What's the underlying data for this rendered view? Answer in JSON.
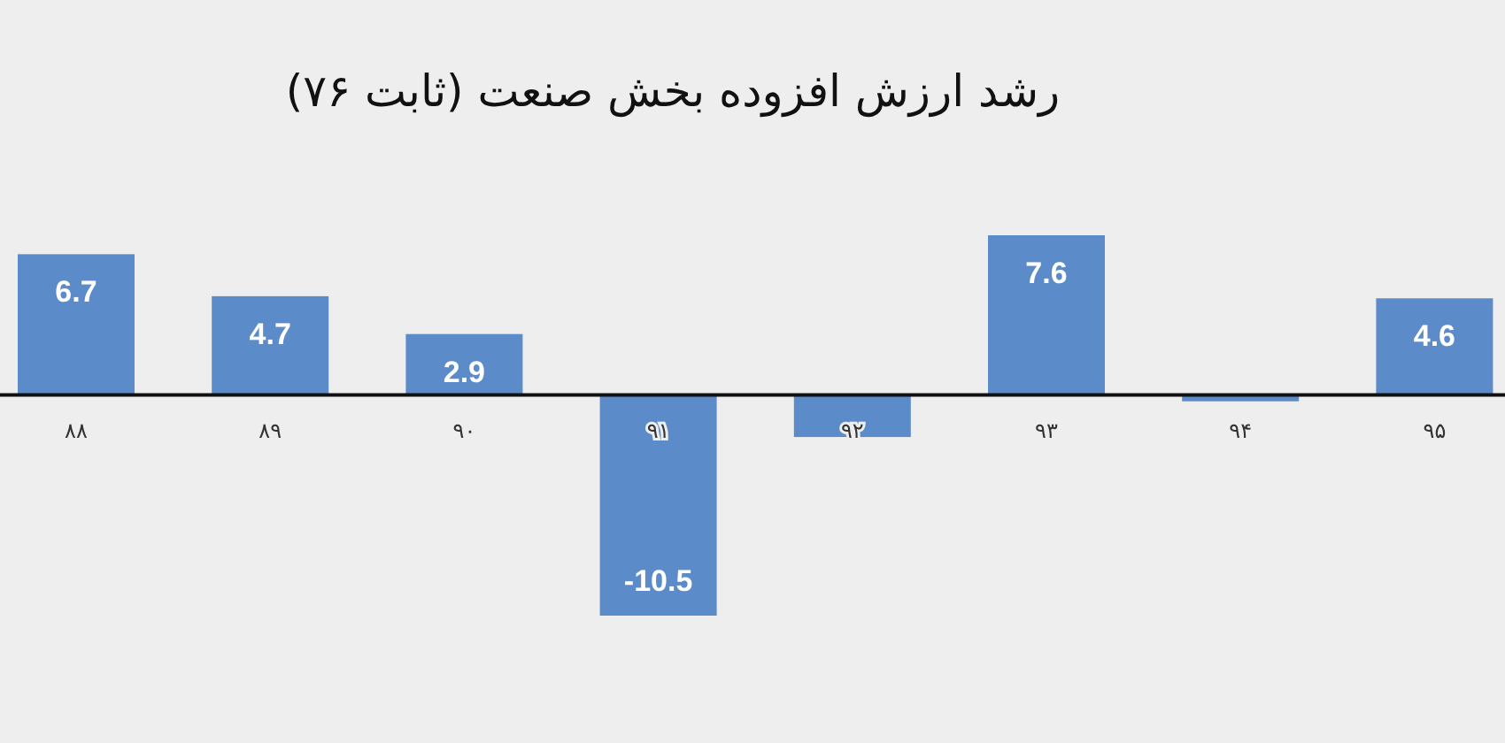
{
  "chart_data": {
    "type": "bar",
    "title": "رشد ارزش افزوده بخش صنعت (ثابت ۷۶)",
    "categories": [
      "۸۸",
      "۸۹",
      "۹۰",
      "۹۱",
      "۹۲",
      "۹۳",
      "۹۴",
      "۹۵"
    ],
    "values": [
      6.7,
      4.7,
      2.9,
      -10.5,
      -2.0,
      7.6,
      -0.3,
      4.6
    ],
    "value_labels": [
      "6.7",
      "4.7",
      "2.9",
      "-10.5",
      null,
      "7.6",
      null,
      "4.6"
    ],
    "color": "#5b8bc8"
  }
}
